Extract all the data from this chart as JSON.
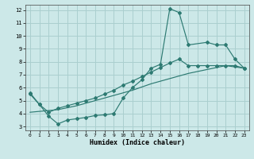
{
  "bg_color": "#cce8e8",
  "grid_color": "#aacfcf",
  "line_color": "#2d7a72",
  "xlabel": "Humidex (Indice chaleur)",
  "xlim": [
    -0.5,
    23.5
  ],
  "ylim": [
    2.7,
    12.4
  ],
  "yticks": [
    3,
    4,
    5,
    6,
    7,
    8,
    9,
    10,
    11,
    12
  ],
  "xticks": [
    0,
    1,
    2,
    3,
    4,
    5,
    6,
    7,
    8,
    9,
    10,
    11,
    12,
    13,
    14,
    15,
    16,
    17,
    18,
    19,
    20,
    21,
    22,
    23
  ],
  "line1_x": [
    0,
    1,
    2,
    3,
    4,
    5,
    6,
    7,
    8,
    9,
    10,
    11,
    12,
    13,
    14,
    15,
    16,
    17,
    19,
    20,
    21,
    22,
    23
  ],
  "line1_y": [
    5.6,
    4.7,
    3.8,
    3.2,
    3.5,
    3.6,
    3.7,
    3.85,
    3.9,
    4.0,
    5.2,
    6.0,
    6.6,
    7.5,
    7.8,
    12.1,
    11.8,
    9.3,
    9.5,
    9.3,
    9.3,
    8.2,
    7.5
  ],
  "line2_x": [
    0,
    3,
    5,
    7,
    9,
    11,
    13,
    15,
    17,
    19,
    21,
    23
  ],
  "line2_y": [
    4.1,
    4.3,
    4.6,
    5.0,
    5.4,
    5.8,
    6.3,
    6.7,
    7.1,
    7.4,
    7.7,
    7.5
  ],
  "line3_x": [
    0,
    1,
    2,
    3,
    4,
    5,
    6,
    7,
    8,
    9,
    10,
    11,
    12,
    13,
    14,
    15,
    16,
    17,
    18,
    19,
    20,
    21,
    22,
    23
  ],
  "line3_y": [
    5.5,
    4.7,
    4.1,
    4.4,
    4.6,
    4.8,
    5.0,
    5.2,
    5.5,
    5.8,
    6.2,
    6.5,
    6.85,
    7.2,
    7.55,
    7.9,
    8.2,
    7.7,
    7.7,
    7.7,
    7.7,
    7.7,
    7.7,
    7.5
  ]
}
